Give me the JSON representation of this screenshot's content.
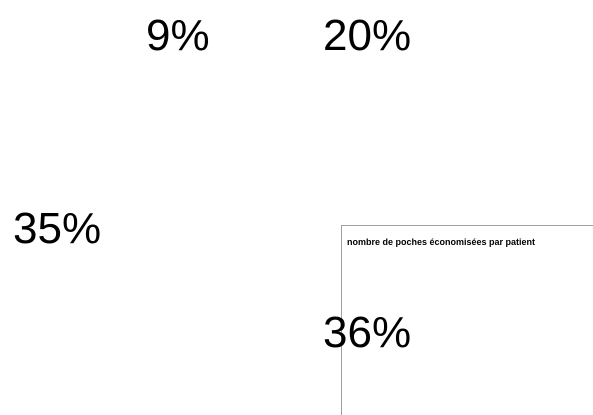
{
  "chart_data": {
    "type": "pie",
    "title": "",
    "slices": [
      {
        "label": "9%",
        "value": 9
      },
      {
        "label": "20%",
        "value": 20
      },
      {
        "label": "35%",
        "value": 35
      },
      {
        "label": "36%",
        "value": 36
      }
    ]
  },
  "inset_chart": {
    "title": "nombre de poches économisées par patient"
  }
}
